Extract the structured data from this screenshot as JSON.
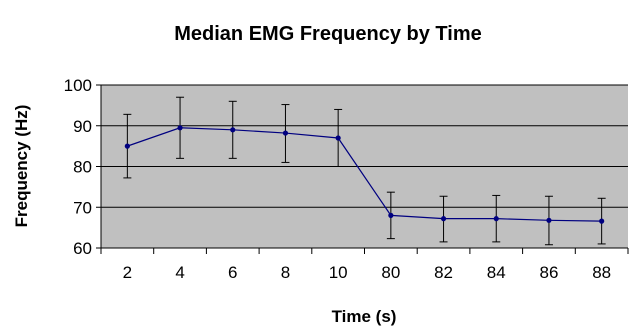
{
  "chart_data": {
    "type": "line",
    "title": "Median EMG Frequency by Time",
    "xlabel": "Time (s)",
    "ylabel": "Frequency (Hz)",
    "categories": [
      "2",
      "4",
      "6",
      "8",
      "10",
      "80",
      "82",
      "84",
      "86",
      "88"
    ],
    "series": [
      {
        "values": [
          85.0,
          89.5,
          89.0,
          88.2,
          87.0,
          68.0,
          67.2,
          67.2,
          66.8,
          66.6
        ],
        "error_low": [
          77.2,
          82.0,
          82.0,
          81.0,
          80.0,
          62.3,
          61.5,
          61.5,
          60.8,
          61.0
        ],
        "error_high": [
          92.8,
          97.0,
          96.0,
          95.2,
          94.0,
          73.7,
          72.7,
          72.9,
          72.7,
          72.2
        ],
        "color": "#000080"
      }
    ],
    "ylim": [
      60,
      100
    ],
    "yticks": [
      60,
      70,
      80,
      90,
      100
    ],
    "grid": true,
    "legend": false,
    "plot_background": "#c0c0c0",
    "gridline_color": "#000000",
    "error_bar_color": "#000000"
  }
}
